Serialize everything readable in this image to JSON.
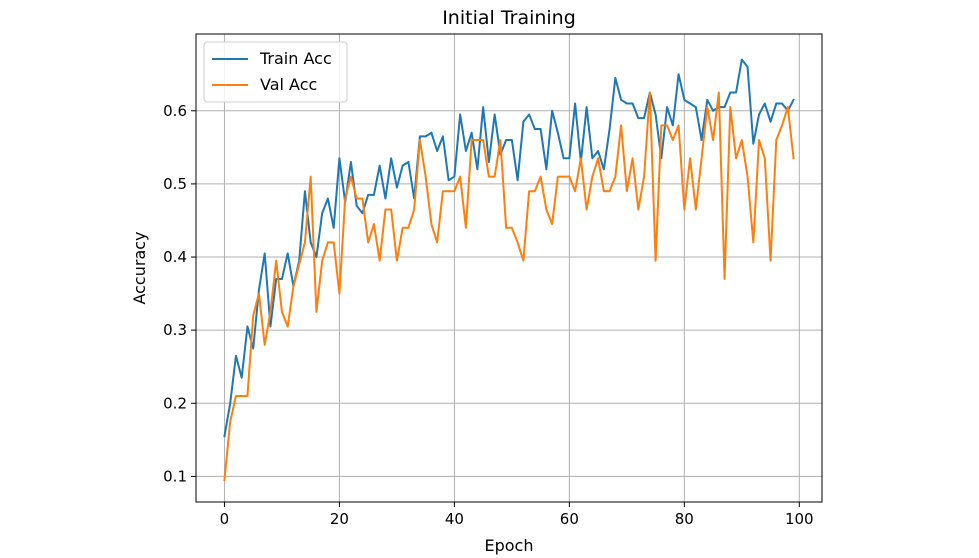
{
  "chart_data": {
    "type": "line",
    "title": "Initial Training",
    "xlabel": "Epoch",
    "ylabel": "Accuracy",
    "xlim": [
      -4.95,
      103.95
    ],
    "ylim": [
      0.065,
      0.705
    ],
    "xticks": [
      0,
      20,
      40,
      60,
      80,
      100
    ],
    "yticks": [
      0.1,
      0.2,
      0.3,
      0.4,
      0.5,
      0.6
    ],
    "grid": true,
    "legend_position": "upper-left",
    "series": [
      {
        "name": "Train Acc",
        "color": "#1f77b4",
        "x": [
          0,
          1,
          2,
          3,
          4,
          5,
          6,
          7,
          8,
          9,
          10,
          11,
          12,
          13,
          14,
          15,
          16,
          17,
          18,
          19,
          20,
          21,
          22,
          23,
          24,
          25,
          26,
          27,
          28,
          29,
          30,
          31,
          32,
          33,
          34,
          35,
          36,
          37,
          38,
          39,
          40,
          41,
          42,
          43,
          44,
          45,
          46,
          47,
          48,
          49,
          50,
          51,
          52,
          53,
          54,
          55,
          56,
          57,
          58,
          59,
          60,
          61,
          62,
          63,
          64,
          65,
          66,
          67,
          68,
          69,
          70,
          71,
          72,
          73,
          74,
          75,
          76,
          77,
          78,
          79,
          80,
          81,
          82,
          83,
          84,
          85,
          86,
          87,
          88,
          89,
          90,
          91,
          92,
          93,
          94,
          95,
          96,
          97,
          98,
          99
        ],
        "values": [
          0.155,
          0.2,
          0.265,
          0.235,
          0.305,
          0.275,
          0.355,
          0.405,
          0.305,
          0.37,
          0.37,
          0.405,
          0.36,
          0.395,
          0.49,
          0.42,
          0.4,
          0.46,
          0.48,
          0.44,
          0.535,
          0.475,
          0.53,
          0.47,
          0.46,
          0.485,
          0.485,
          0.525,
          0.48,
          0.535,
          0.495,
          0.525,
          0.53,
          0.48,
          0.565,
          0.565,
          0.57,
          0.545,
          0.565,
          0.505,
          0.51,
          0.595,
          0.545,
          0.57,
          0.52,
          0.605,
          0.53,
          0.595,
          0.54,
          0.56,
          0.56,
          0.505,
          0.585,
          0.595,
          0.575,
          0.575,
          0.52,
          0.6,
          0.57,
          0.535,
          0.535,
          0.61,
          0.53,
          0.605,
          0.535,
          0.545,
          0.52,
          0.575,
          0.645,
          0.615,
          0.61,
          0.61,
          0.59,
          0.59,
          0.625,
          0.595,
          0.535,
          0.605,
          0.58,
          0.65,
          0.615,
          0.61,
          0.605,
          0.56,
          0.615,
          0.6,
          0.605,
          0.605,
          0.625,
          0.625,
          0.67,
          0.66,
          0.555,
          0.595,
          0.61,
          0.585,
          0.61,
          0.61,
          0.6,
          0.615
        ]
      },
      {
        "name": "Val Acc",
        "color": "#ff7f0e",
        "x": [
          0,
          1,
          2,
          3,
          4,
          5,
          6,
          7,
          8,
          9,
          10,
          11,
          12,
          13,
          14,
          15,
          16,
          17,
          18,
          19,
          20,
          21,
          22,
          23,
          24,
          25,
          26,
          27,
          28,
          29,
          30,
          31,
          32,
          33,
          34,
          35,
          36,
          37,
          38,
          39,
          40,
          41,
          42,
          43,
          44,
          45,
          46,
          47,
          48,
          49,
          50,
          51,
          52,
          53,
          54,
          55,
          56,
          57,
          58,
          59,
          60,
          61,
          62,
          63,
          64,
          65,
          66,
          67,
          68,
          69,
          70,
          71,
          72,
          73,
          74,
          75,
          76,
          77,
          78,
          79,
          80,
          81,
          82,
          83,
          84,
          85,
          86,
          87,
          88,
          89,
          90,
          91,
          92,
          93,
          94,
          95,
          96,
          97,
          98,
          99
        ],
        "values": [
          0.095,
          0.175,
          0.21,
          0.21,
          0.21,
          0.32,
          0.35,
          0.28,
          0.325,
          0.395,
          0.325,
          0.305,
          0.36,
          0.39,
          0.42,
          0.51,
          0.325,
          0.395,
          0.42,
          0.42,
          0.35,
          0.48,
          0.51,
          0.48,
          0.48,
          0.42,
          0.445,
          0.395,
          0.465,
          0.465,
          0.395,
          0.44,
          0.44,
          0.465,
          0.56,
          0.51,
          0.445,
          0.42,
          0.49,
          0.49,
          0.49,
          0.51,
          0.44,
          0.56,
          0.56,
          0.56,
          0.51,
          0.51,
          0.56,
          0.44,
          0.44,
          0.42,
          0.395,
          0.49,
          0.49,
          0.51,
          0.465,
          0.445,
          0.51,
          0.51,
          0.51,
          0.49,
          0.535,
          0.465,
          0.51,
          0.535,
          0.49,
          0.49,
          0.51,
          0.58,
          0.49,
          0.535,
          0.465,
          0.51,
          0.625,
          0.395,
          0.58,
          0.58,
          0.56,
          0.58,
          0.465,
          0.535,
          0.465,
          0.535,
          0.605,
          0.56,
          0.625,
          0.37,
          0.605,
          0.535,
          0.56,
          0.51,
          0.42,
          0.56,
          0.535,
          0.395,
          0.56,
          0.58,
          0.605,
          0.535
        ]
      }
    ]
  }
}
